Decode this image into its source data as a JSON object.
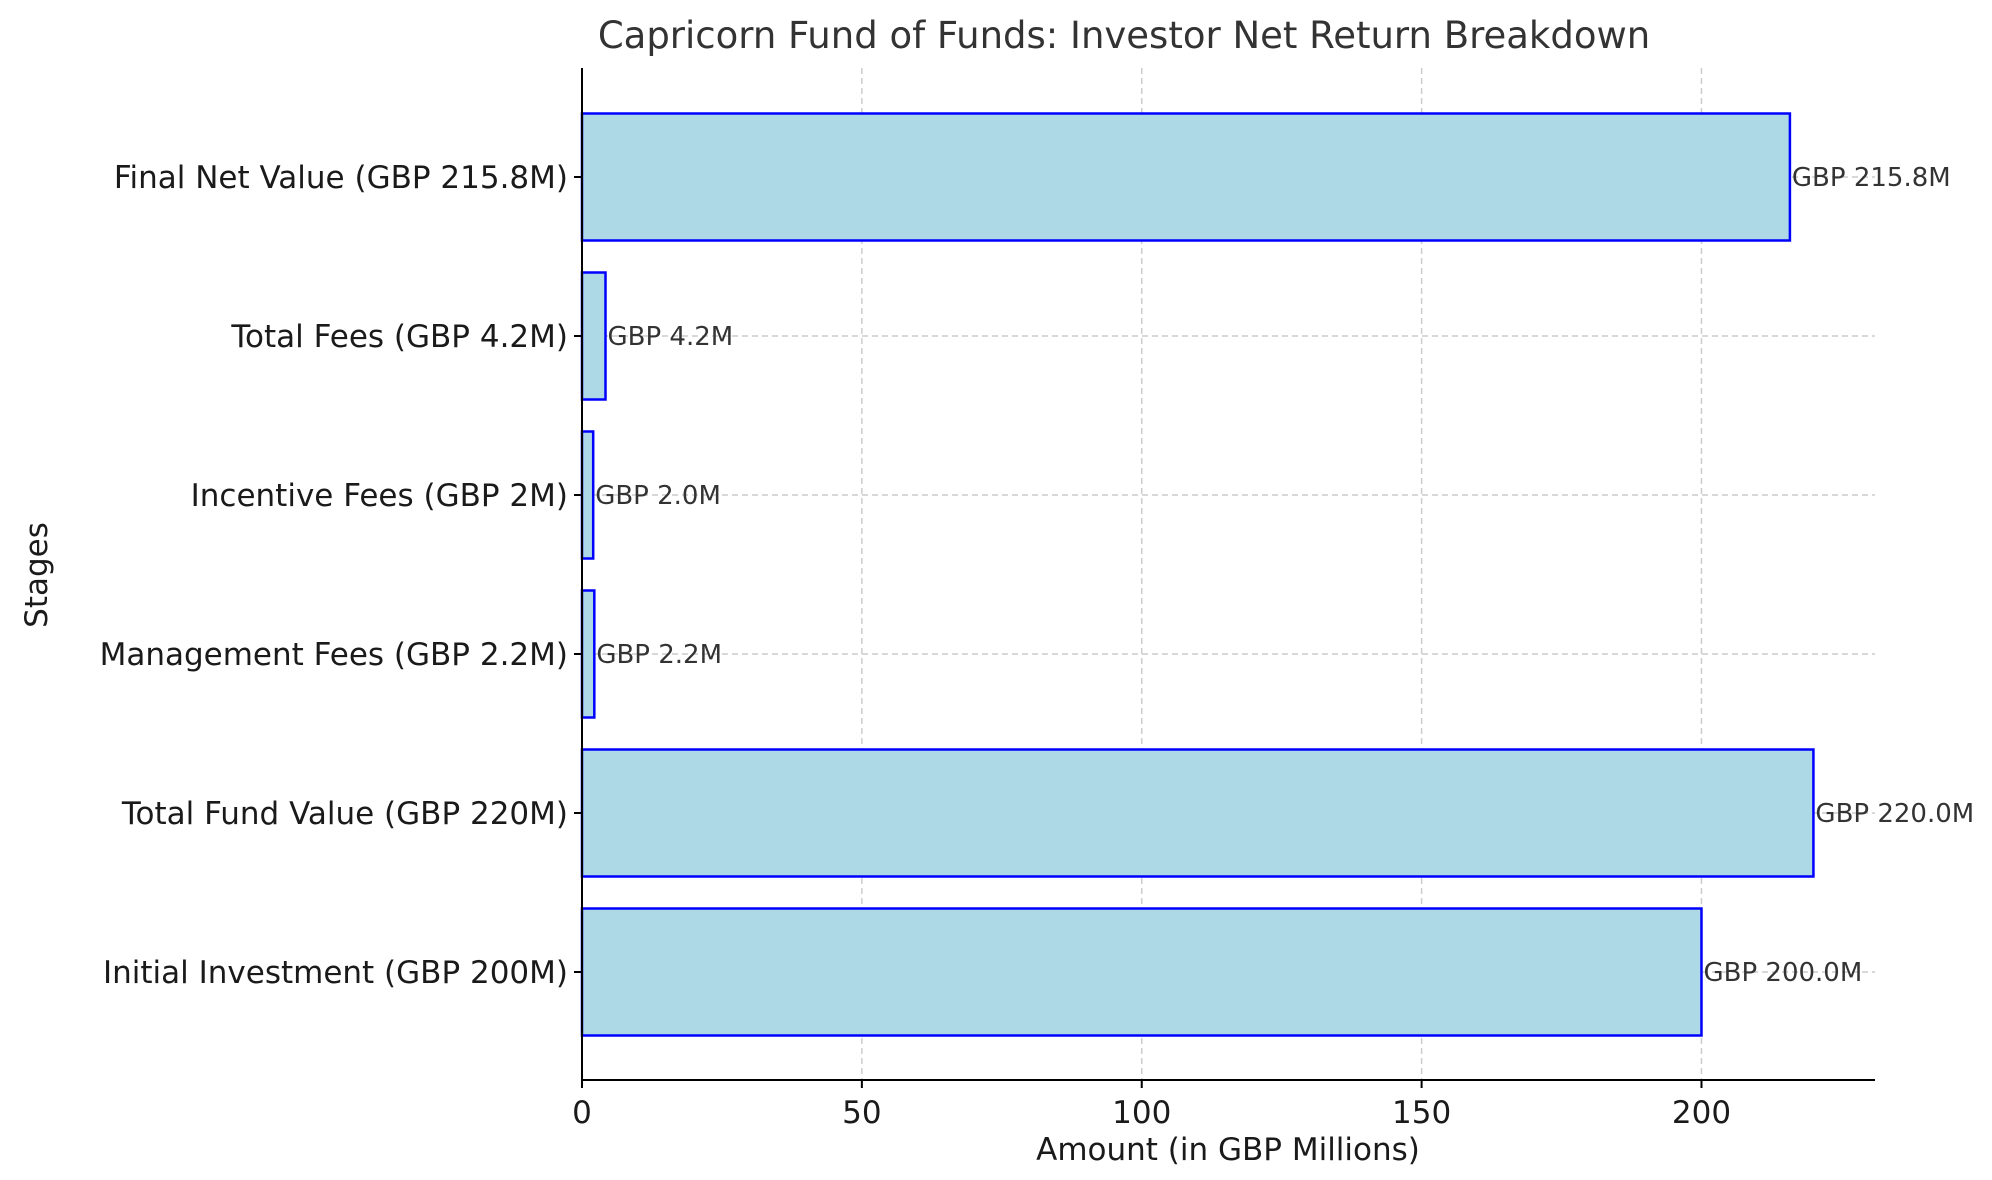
{
  "chart_data": {
    "type": "bar",
    "orientation": "horizontal",
    "title": "Capricorn Fund of Funds: Investor Net Return Breakdown",
    "xlabel": "Amount (in GBP Millions)",
    "ylabel": "Stages",
    "categories": [
      "Initial Investment (GBP 200M)",
      "Total Fund Value (GBP 220M)",
      "Management Fees (GBP 2.2M)",
      "Incentive Fees (GBP 2M)",
      "Total Fees (GBP 4.2M)",
      "Final Net Value (GBP 215.8M)"
    ],
    "values": [
      200.0,
      220.0,
      2.2,
      2.0,
      4.2,
      215.8
    ],
    "data_labels": [
      "GBP 200.0M",
      "GBP 220.0M",
      "GBP 2.2M",
      "GBP 2.0M",
      "GBP 4.2M",
      "GBP 215.8M"
    ],
    "xlim": [
      0,
      231
    ],
    "xticks": [
      0,
      50,
      100,
      150,
      200
    ],
    "xtick_labels": [
      "0",
      "50",
      "100",
      "150",
      "200"
    ],
    "grid": true,
    "colors": {
      "bar_fill": "#add8e6",
      "bar_edge": "#0000ff",
      "grid": "#cccccc"
    }
  }
}
